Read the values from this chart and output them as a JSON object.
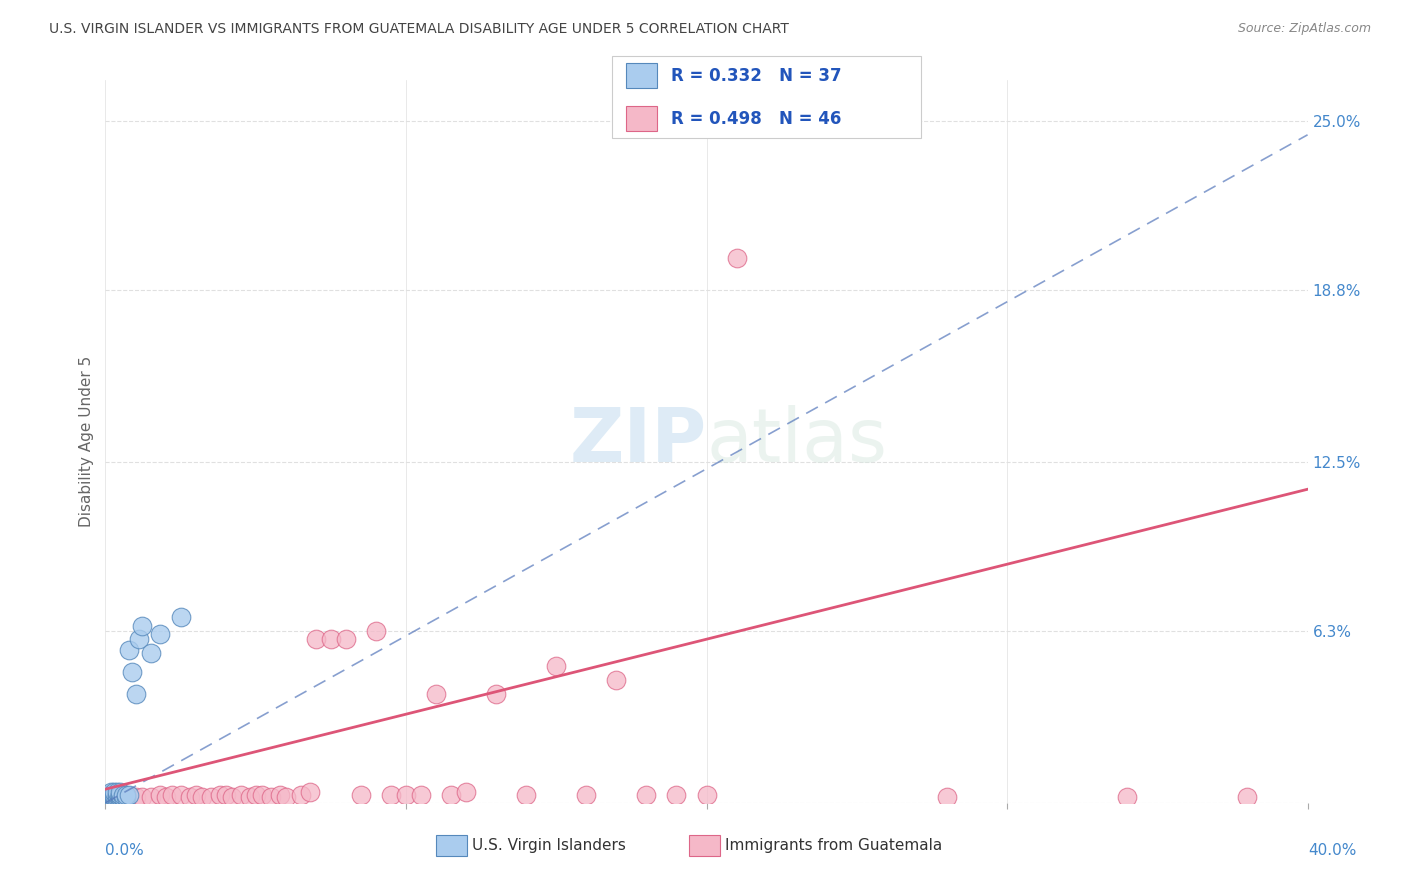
{
  "title": "U.S. VIRGIN ISLANDER VS IMMIGRANTS FROM GUATEMALA DISABILITY AGE UNDER 5 CORRELATION CHART",
  "source": "Source: ZipAtlas.com",
  "ylabel": "Disability Age Under 5",
  "ytick_labels": [
    "",
    "6.3%",
    "12.5%",
    "18.8%",
    "25.0%"
  ],
  "ytick_values": [
    0,
    0.063,
    0.125,
    0.188,
    0.25
  ],
  "xlim": [
    0,
    0.4
  ],
  "ylim": [
    0,
    0.265
  ],
  "legend_blue_r": "R = 0.332",
  "legend_blue_n": "N = 37",
  "legend_pink_r": "R = 0.498",
  "legend_pink_n": "N = 46",
  "blue_label": "U.S. Virgin Islanders",
  "pink_label": "Immigrants from Guatemala",
  "watermark_zip": "ZIP",
  "watermark_atlas": "atlas",
  "blue_scatter_x": [
    0.001,
    0.001,
    0.001,
    0.001,
    0.002,
    0.002,
    0.002,
    0.002,
    0.002,
    0.003,
    0.003,
    0.003,
    0.003,
    0.003,
    0.004,
    0.004,
    0.004,
    0.004,
    0.005,
    0.005,
    0.005,
    0.005,
    0.005,
    0.005,
    0.006,
    0.006,
    0.007,
    0.007,
    0.008,
    0.008,
    0.009,
    0.01,
    0.011,
    0.012,
    0.015,
    0.018,
    0.025
  ],
  "blue_scatter_y": [
    0.001,
    0.002,
    0.002,
    0.003,
    0.001,
    0.002,
    0.003,
    0.003,
    0.004,
    0.001,
    0.002,
    0.002,
    0.003,
    0.004,
    0.001,
    0.002,
    0.003,
    0.004,
    0.001,
    0.002,
    0.002,
    0.003,
    0.003,
    0.004,
    0.002,
    0.003,
    0.002,
    0.003,
    0.003,
    0.056,
    0.048,
    0.04,
    0.06,
    0.065,
    0.055,
    0.062,
    0.068
  ],
  "pink_scatter_x": [
    0.01,
    0.012,
    0.015,
    0.018,
    0.02,
    0.022,
    0.025,
    0.028,
    0.03,
    0.032,
    0.035,
    0.038,
    0.04,
    0.042,
    0.045,
    0.048,
    0.05,
    0.052,
    0.055,
    0.058,
    0.06,
    0.065,
    0.068,
    0.07,
    0.075,
    0.08,
    0.085,
    0.09,
    0.095,
    0.1,
    0.105,
    0.11,
    0.115,
    0.12,
    0.13,
    0.14,
    0.15,
    0.16,
    0.17,
    0.18,
    0.19,
    0.2,
    0.21,
    0.28,
    0.34,
    0.38
  ],
  "pink_scatter_y": [
    0.002,
    0.002,
    0.002,
    0.003,
    0.002,
    0.003,
    0.003,
    0.002,
    0.003,
    0.002,
    0.002,
    0.003,
    0.003,
    0.002,
    0.003,
    0.002,
    0.003,
    0.003,
    0.002,
    0.003,
    0.002,
    0.003,
    0.004,
    0.06,
    0.06,
    0.06,
    0.003,
    0.063,
    0.003,
    0.003,
    0.003,
    0.04,
    0.003,
    0.004,
    0.04,
    0.003,
    0.05,
    0.003,
    0.045,
    0.003,
    0.003,
    0.003,
    0.2,
    0.002,
    0.002,
    0.002
  ],
  "blue_line_x": [
    0.0,
    0.4
  ],
  "blue_line_y": [
    0.0,
    0.245
  ],
  "pink_line_x": [
    0.0,
    0.4
  ],
  "pink_line_y": [
    0.005,
    0.115
  ],
  "blue_marker_color": "#aaccee",
  "blue_marker_edge": "#5588bb",
  "pink_marker_color": "#f5b8c8",
  "pink_marker_edge": "#dd6688",
  "blue_line_color": "#5577bb",
  "pink_line_color": "#dd5577",
  "grid_color": "#e0e0e0",
  "bg_color": "#ffffff",
  "title_color": "#444444",
  "source_color": "#888888",
  "right_tick_color": "#4488cc",
  "bottom_label_color": "#444444",
  "bottom_xleft_color": "#4488cc",
  "bottom_xright_color": "#4488cc"
}
